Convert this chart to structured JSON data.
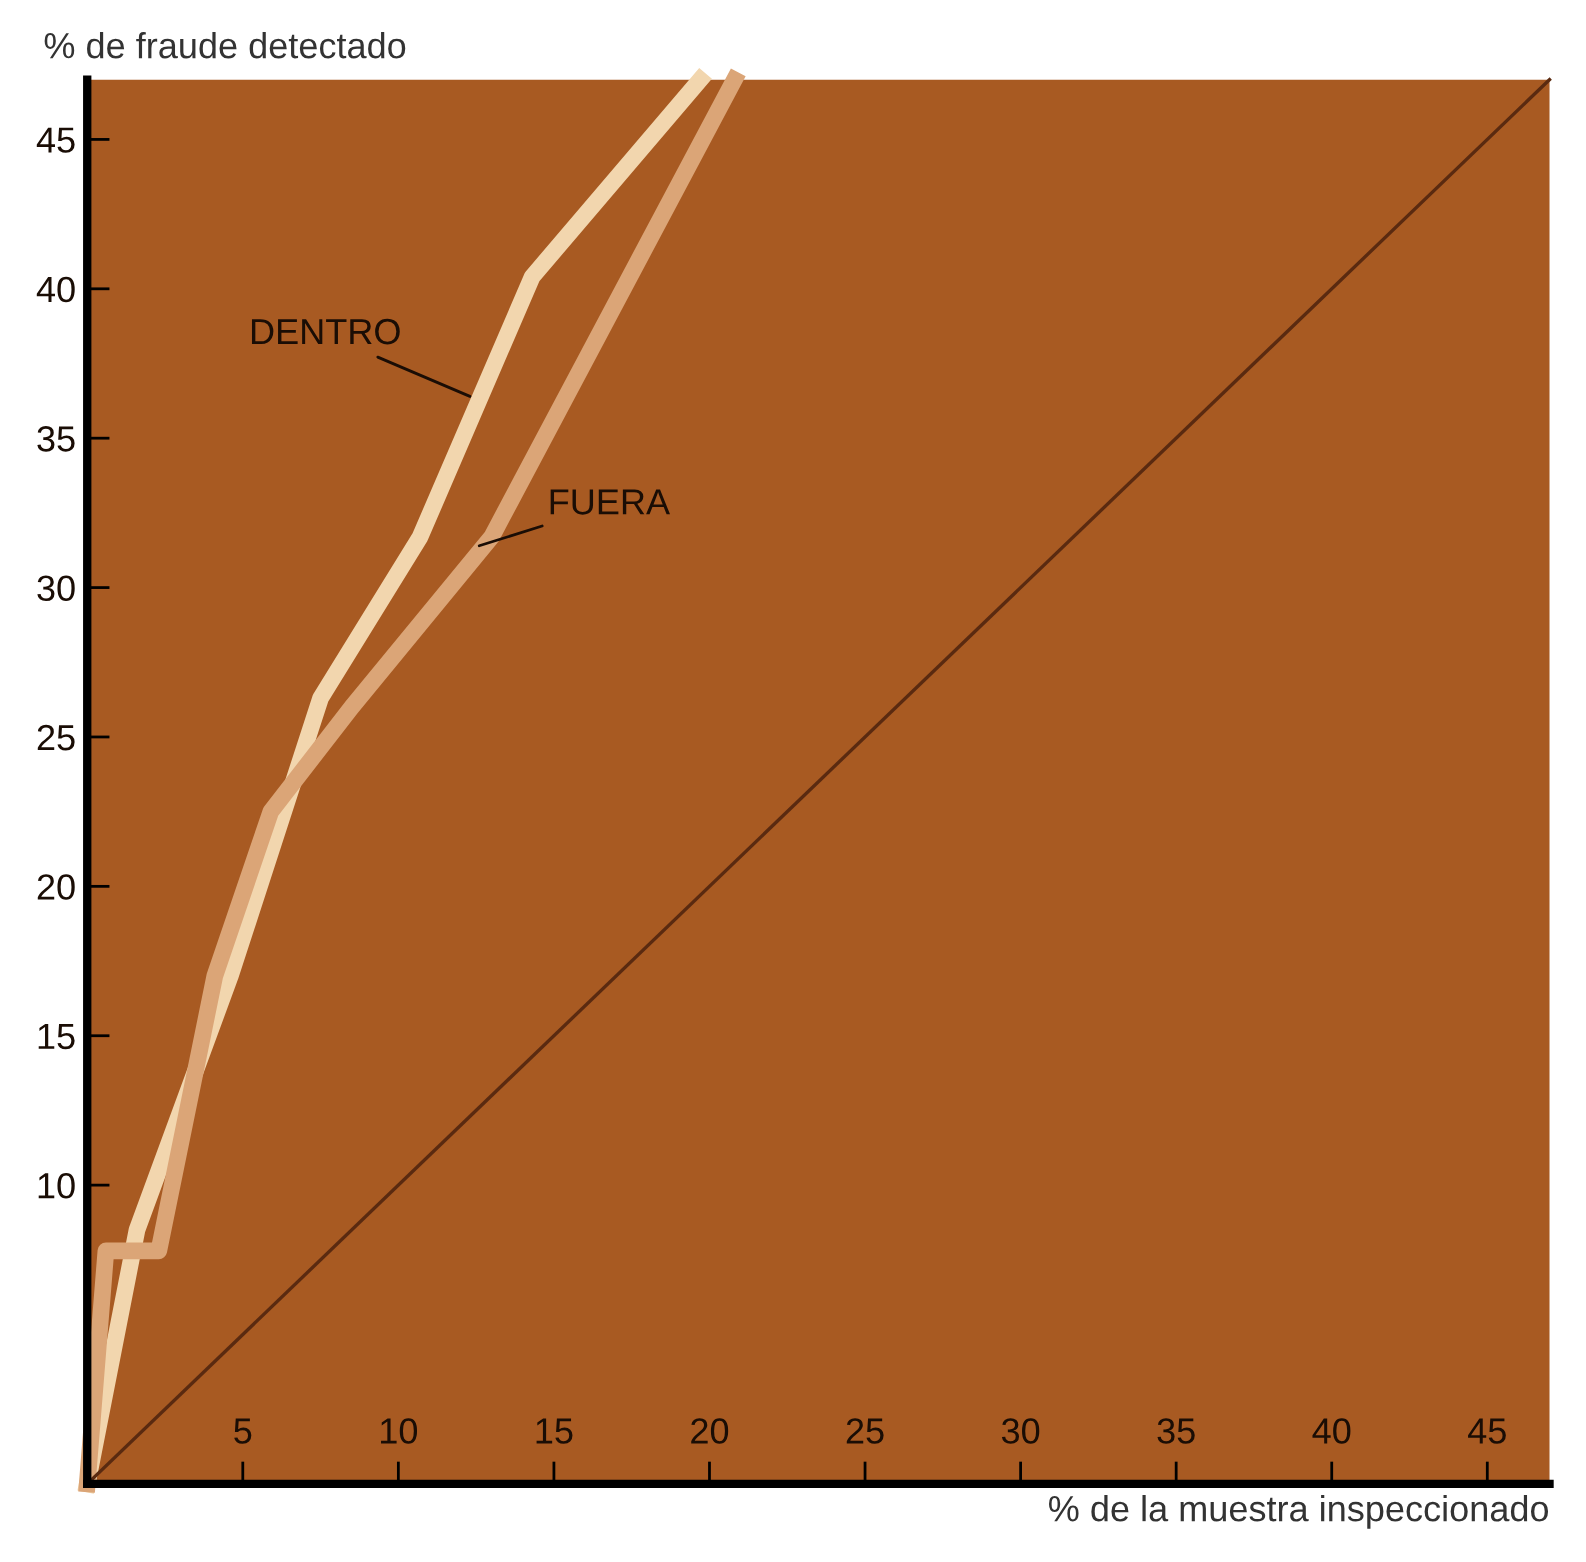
{
  "chart_data": {
    "type": "line",
    "xlabel": "% de la muestra inspeccionado",
    "ylabel": "% de fraude detectado",
    "xlim": [
      0,
      47
    ],
    "ylim": [
      0,
      47
    ],
    "xticks": [
      5,
      10,
      15,
      20,
      25,
      30,
      35,
      40,
      45
    ],
    "yticks": [
      10,
      15,
      20,
      25,
      30,
      35,
      40,
      45
    ],
    "grid": false,
    "legend": false,
    "marker": "none",
    "line_style": "solid",
    "series": [
      {
        "name": "DENTRO",
        "color": "#f2d6ae",
        "x": [
          0,
          1.6,
          4.6,
          7.5,
          10.7,
          14.3,
          19.7
        ],
        "values": [
          0,
          8.5,
          17,
          26.3,
          31.7,
          40.4,
          47
        ]
      },
      {
        "name": "FUERA",
        "color": "#dba577",
        "x": [
          0,
          0.6,
          2.3,
          4.1,
          5.9,
          8.5,
          13,
          20.8
        ],
        "values": [
          0,
          7.8,
          7.8,
          17,
          22.5,
          26,
          31.7,
          47
        ]
      },
      {
        "color": "#5a2a10",
        "x": [
          0,
          47
        ],
        "values": [
          0,
          47
        ]
      }
    ]
  }
}
